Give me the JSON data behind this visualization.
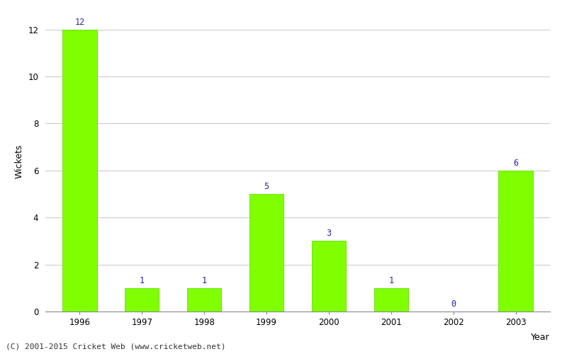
{
  "years": [
    "1996",
    "1997",
    "1998",
    "1999",
    "2000",
    "2001",
    "2002",
    "2003"
  ],
  "wickets": [
    12,
    1,
    1,
    5,
    3,
    1,
    0,
    6
  ],
  "bar_color": "#7fff00",
  "bar_edge_color": "#66dd00",
  "label_color": "#2222aa",
  "xlabel": "Year",
  "ylabel": "Wickets",
  "ylim": [
    0,
    12.8
  ],
  "yticks": [
    0,
    2,
    4,
    6,
    8,
    10,
    12
  ],
  "grid_color": "#cccccc",
  "background_color": "#ffffff",
  "footer_text": "(C) 2001-2015 Cricket Web (www.cricketweb.net)",
  "label_fontsize": 8.5,
  "axis_label_fontsize": 9,
  "tick_fontsize": 8.5,
  "footer_fontsize": 8,
  "bar_width": 0.55
}
